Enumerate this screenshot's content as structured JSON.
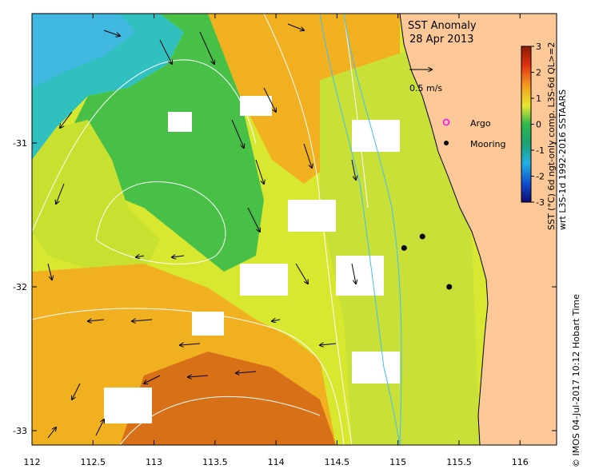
{
  "title": {
    "line1": "SST Anomaly",
    "line2": "28 Apr 2013"
  },
  "velocity_scale_label": "0.5 m/s",
  "legend": {
    "argo_label": "Argo",
    "mooring_label": "Mooring",
    "argo_color": "#ff00ff",
    "mooring_color": "#000000"
  },
  "colorbar": {
    "ticks": [
      "3",
      "2",
      "1",
      "0",
      "-1",
      "-2",
      "-3"
    ],
    "label_line1": "SST (°C) 6d ngt-only comp. L3S-6d QL>=2",
    "label_line2": "wrt L3S-1d 1992-2016 SSTAARS"
  },
  "credit": "© IMOS 04-Jul-2017 10:12 Hobart Time",
  "chart_data": {
    "type": "heatmap",
    "title": "SST Anomaly 28 Apr 2013",
    "x_ticks": [
      112,
      112.5,
      113,
      113.5,
      114,
      114.5,
      115,
      115.5,
      116
    ],
    "x_tick_labels": [
      "112",
      "112.5",
      "113",
      "113.5",
      "114",
      "114.5",
      "115",
      "115.5",
      "116"
    ],
    "y_ticks": [
      -31,
      -32,
      -33
    ],
    "y_tick_labels": [
      "-31",
      "-32",
      "-33"
    ],
    "xlim": [
      112,
      116.3
    ],
    "ylim": [
      -33.1,
      -30.1
    ],
    "colorbar_range": [
      -3,
      3
    ],
    "moorings": [
      {
        "lon": 115.05,
        "lat": -31.73
      },
      {
        "lon": 115.2,
        "lat": -31.65
      },
      {
        "lon": 115.42,
        "lat": -32.0
      }
    ],
    "argo": []
  }
}
